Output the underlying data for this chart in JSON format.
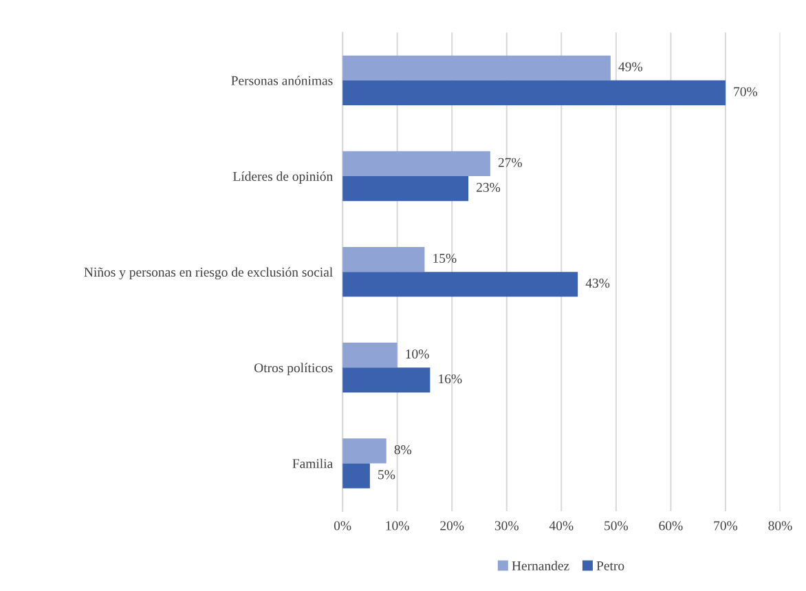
{
  "chart_data": {
    "type": "bar",
    "orientation": "horizontal",
    "categories": [
      "Personas anónimas",
      "Líderes de opinión",
      "Niños y personas en riesgo de exclusión social",
      "Otros políticos",
      "Familia"
    ],
    "series": [
      {
        "name": "Hernandez",
        "color": "#8fa4d5",
        "values": [
          49,
          27,
          15,
          10,
          8
        ],
        "value_labels": [
          "49%",
          "27%",
          "15%",
          "10%",
          "8%"
        ]
      },
      {
        "name": "Petro",
        "color": "#3a62ae",
        "values": [
          70,
          23,
          43,
          16,
          5
        ],
        "value_labels": [
          "70%",
          "23%",
          "43%",
          "16%",
          "5%"
        ]
      }
    ],
    "xlim": [
      0,
      80
    ],
    "xticks": [
      {
        "value": 0,
        "label": "0%"
      },
      {
        "value": 10,
        "label": "10%"
      },
      {
        "value": 20,
        "label": "20%"
      },
      {
        "value": 30,
        "label": "30%"
      },
      {
        "value": 40,
        "label": "40%"
      },
      {
        "value": 50,
        "label": "50%"
      },
      {
        "value": 60,
        "label": "60%"
      },
      {
        "value": 70,
        "label": "70%"
      },
      {
        "value": 80,
        "label": "80%"
      }
    ],
    "grid": "x",
    "legend": "bottom"
  }
}
